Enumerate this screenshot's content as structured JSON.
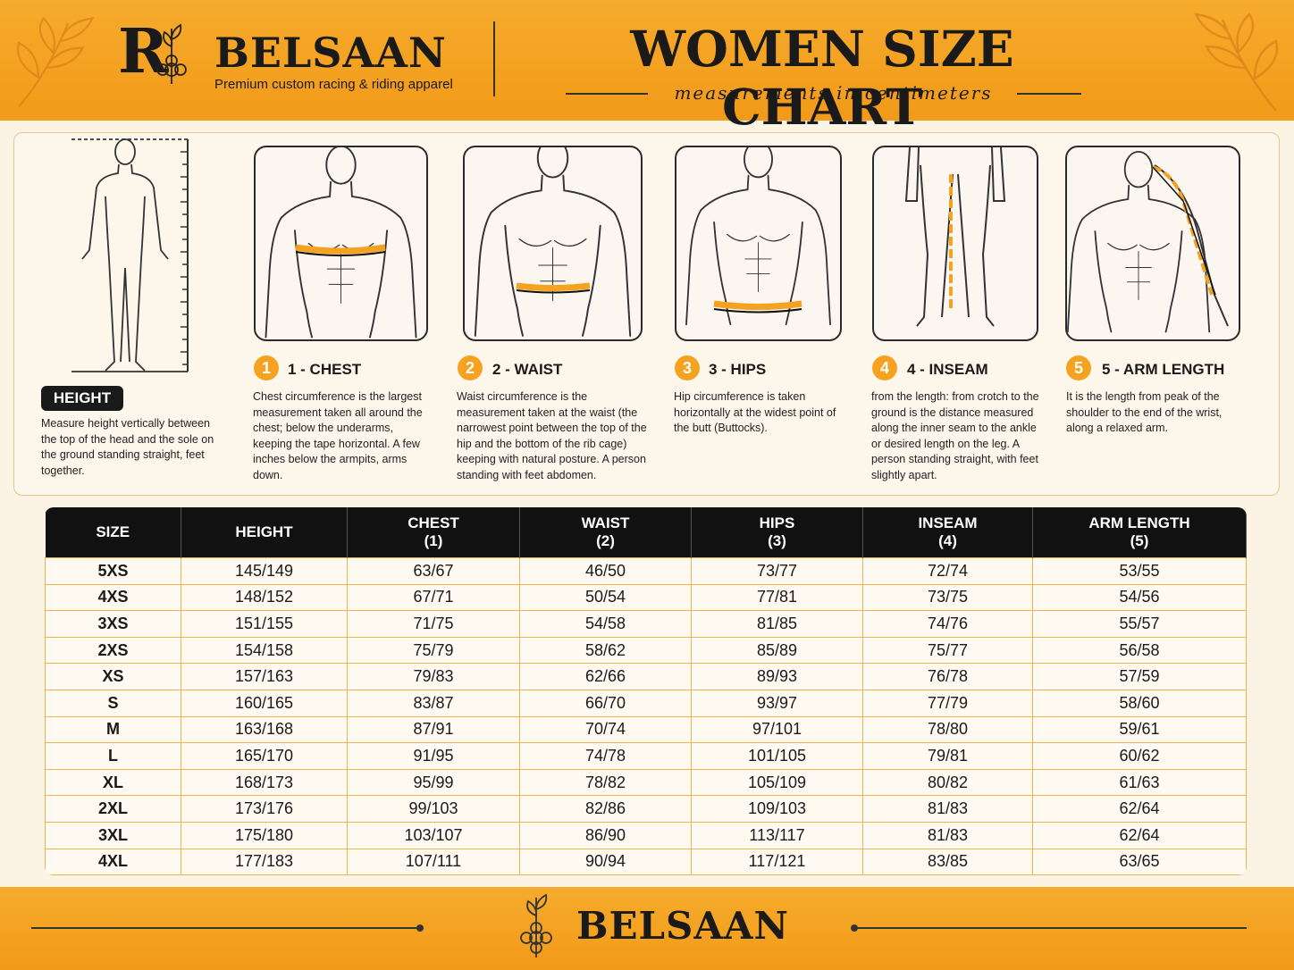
{
  "header": {
    "logo_letter": "R",
    "brand": "BELSAAN",
    "tagline": "Premium custom racing & riding apparel",
    "title": "WOMEN SIZE CHART",
    "subtitle": "measurements in centimeters"
  },
  "height_guide": {
    "label": "HEIGHT",
    "description": "Measure height vertically between the top of the head and the sole on the ground standing straight, feet together."
  },
  "measures": [
    {
      "number": "1",
      "title": "1 - CHEST",
      "description": "Chest circumference is the largest measurement taken all around the chest; below the underarms, keeping the tape horizontal. A few inches below the armpits, arms down."
    },
    {
      "number": "2",
      "title": "2 - WAIST",
      "description": "Waist circumference is the measurement taken at the waist (the narrowest point between the top of the hip and the bottom of the rib cage) keeping with natural posture. A person standing with feet abdomen."
    },
    {
      "number": "3",
      "title": "3 - HIPS",
      "description": "Hip circumference is taken horizontally at the widest point of the butt (Buttocks)."
    },
    {
      "number": "4",
      "title": "4 - INSEAM",
      "description": "from the length: from crotch to the ground is the distance measured along the inner seam to the ankle or desired length on the leg. A person standing straight, with feet slightly apart."
    },
    {
      "number": "5",
      "title": "5 - ARM LENGTH",
      "description": "It is the length from peak of the shoulder to the end of the wrist, along a relaxed arm."
    }
  ],
  "table": {
    "headers": [
      [
        "SIZE"
      ],
      [
        "HEIGHT"
      ],
      [
        "CHEST",
        "(1)"
      ],
      [
        "WAIST",
        "(2)"
      ],
      [
        "HIPS",
        "(3)"
      ],
      [
        "INSEAM",
        "(4)"
      ],
      [
        "ARM LENGTH",
        "(5)"
      ]
    ],
    "rows": [
      [
        "5XS",
        "145/149",
        "63/67",
        "46/50",
        "73/77",
        "72/74",
        "53/55"
      ],
      [
        "4XS",
        "148/152",
        "67/71",
        "50/54",
        "77/81",
        "73/75",
        "54/56"
      ],
      [
        "3XS",
        "151/155",
        "71/75",
        "54/58",
        "81/85",
        "74/76",
        "55/57"
      ],
      [
        "2XS",
        "154/158",
        "75/79",
        "58/62",
        "85/89",
        "75/77",
        "56/58"
      ],
      [
        "XS",
        "157/163",
        "79/83",
        "62/66",
        "89/93",
        "76/78",
        "57/59"
      ],
      [
        "S",
        "160/165",
        "83/87",
        "66/70",
        "93/97",
        "77/79",
        "58/60"
      ],
      [
        "M",
        "163/168",
        "87/91",
        "70/74",
        "97/101",
        "78/80",
        "59/61"
      ],
      [
        "L",
        "165/170",
        "91/95",
        "74/78",
        "101/105",
        "79/81",
        "60/62"
      ],
      [
        "XL",
        "168/173",
        "95/99",
        "78/82",
        "105/109",
        "80/82",
        "61/63"
      ],
      [
        "2XL",
        "173/176",
        "99/103",
        "82/86",
        "109/103",
        "81/83",
        "62/64"
      ],
      [
        "3XL",
        "175/180",
        "103/107",
        "86/90",
        "113/117",
        "81/83",
        "62/64"
      ],
      [
        "4XL",
        "177/183",
        "107/111",
        "90/94",
        "117/121",
        "83/85",
        "63/65"
      ]
    ]
  },
  "footer": {
    "brand": "BELSAAN"
  }
}
